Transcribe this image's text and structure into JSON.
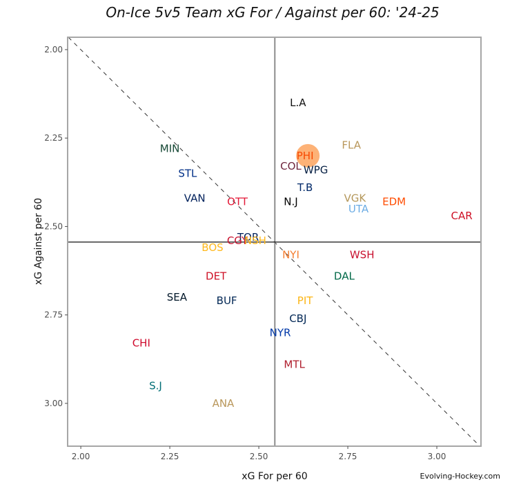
{
  "chart_data": {
    "type": "scatter",
    "title": "On-Ice 5v5 Team xG For / Against per 60: '24-25",
    "xlabel": "xG For per 60",
    "ylabel": "xG Against per 60",
    "xlim": [
      1.963,
      3.124
    ],
    "ylim": [
      1.965,
      3.121
    ],
    "y_reversed": true,
    "xticks": [
      "2.00",
      "2.25",
      "2.50",
      "2.75",
      "3.00"
    ],
    "yticks": [
      "2.00",
      "2.25",
      "2.50",
      "2.75",
      "3.00"
    ],
    "xtick_values": [
      2.0,
      2.25,
      2.5,
      2.75,
      3.0
    ],
    "ytick_values": [
      2.0,
      2.25,
      2.5,
      2.75,
      3.0
    ],
    "grid": false,
    "mean_x": 2.545,
    "mean_y": 2.544,
    "diagonal": "xGF = xGA (dashed)",
    "highlight_team": "PHI",
    "highlight_color": "#FDA55F",
    "points": [
      {
        "team": "L.A",
        "x": 2.61,
        "y": 2.15,
        "color": "#111111"
      },
      {
        "team": "FLA",
        "x": 2.76,
        "y": 2.27,
        "color": "#B9975B"
      },
      {
        "team": "PHI",
        "x": 2.63,
        "y": 2.3,
        "color": "#F74902"
      },
      {
        "team": "COL",
        "x": 2.59,
        "y": 2.33,
        "color": "#6F263D"
      },
      {
        "team": "WPG",
        "x": 2.66,
        "y": 2.34,
        "color": "#041E42"
      },
      {
        "team": "T.B",
        "x": 2.63,
        "y": 2.39,
        "color": "#002868"
      },
      {
        "team": "N.J",
        "x": 2.59,
        "y": 2.43,
        "color": "#000000"
      },
      {
        "team": "VGK",
        "x": 2.77,
        "y": 2.42,
        "color": "#B4975A"
      },
      {
        "team": "UTA",
        "x": 2.78,
        "y": 2.45,
        "color": "#6CACE4"
      },
      {
        "team": "EDM",
        "x": 2.88,
        "y": 2.43,
        "color": "#FF4C00"
      },
      {
        "team": "CAR",
        "x": 3.07,
        "y": 2.47,
        "color": "#CE1126"
      },
      {
        "team": "MIN",
        "x": 2.25,
        "y": 2.28,
        "color": "#154734"
      },
      {
        "team": "STL",
        "x": 2.3,
        "y": 2.35,
        "color": "#002F87"
      },
      {
        "team": "VAN",
        "x": 2.32,
        "y": 2.42,
        "color": "#00205B"
      },
      {
        "team": "OTT",
        "x": 2.44,
        "y": 2.43,
        "color": "#E31837"
      },
      {
        "team": "TOR",
        "x": 2.47,
        "y": 2.53,
        "color": "#00205B"
      },
      {
        "team": "CGY",
        "x": 2.44,
        "y": 2.54,
        "color": "#C8102E"
      },
      {
        "team": "NSH",
        "x": 2.49,
        "y": 2.54,
        "color": "#FFB81C"
      },
      {
        "team": "BOS",
        "x": 2.37,
        "y": 2.56,
        "color": "#FFB81C"
      },
      {
        "team": "NYI",
        "x": 2.59,
        "y": 2.58,
        "color": "#F47D30"
      },
      {
        "team": "WSH",
        "x": 2.79,
        "y": 2.58,
        "color": "#C8102E"
      },
      {
        "team": "DAL",
        "x": 2.74,
        "y": 2.64,
        "color": "#006847"
      },
      {
        "team": "DET",
        "x": 2.38,
        "y": 2.64,
        "color": "#CE1126"
      },
      {
        "team": "SEA",
        "x": 2.27,
        "y": 2.7,
        "color": "#001628"
      },
      {
        "team": "BUF",
        "x": 2.41,
        "y": 2.71,
        "color": "#002654"
      },
      {
        "team": "PIT",
        "x": 2.63,
        "y": 2.71,
        "color": "#FCB514"
      },
      {
        "team": "CBJ",
        "x": 2.61,
        "y": 2.76,
        "color": "#002654"
      },
      {
        "team": "NYR",
        "x": 2.56,
        "y": 2.8,
        "color": "#0038A8"
      },
      {
        "team": "MTL",
        "x": 2.6,
        "y": 2.89,
        "color": "#AF1E2D"
      },
      {
        "team": "CHI",
        "x": 2.17,
        "y": 2.83,
        "color": "#CF0A2C"
      },
      {
        "team": "S.J",
        "x": 2.21,
        "y": 2.95,
        "color": "#006D75"
      },
      {
        "team": "ANA",
        "x": 2.4,
        "y": 3.0,
        "color": "#B9975B"
      }
    ]
  },
  "watermark": "Evolving-Hockey.com"
}
